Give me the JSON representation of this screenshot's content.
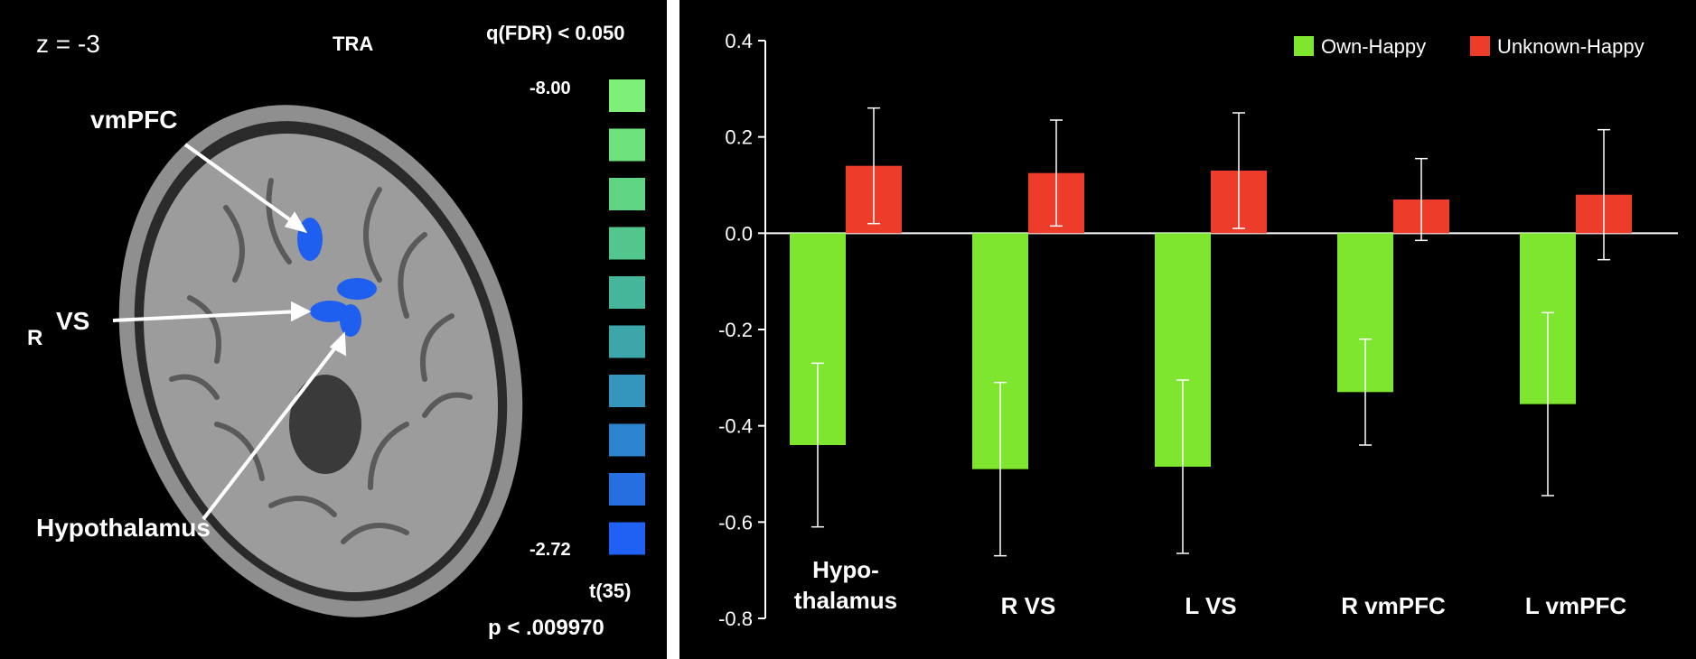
{
  "brain_panel": {
    "slice_label": "z = -3",
    "view_label": "TRA",
    "threshold_label": "q(FDR) < 0.050",
    "side_label": "R",
    "colorbar": {
      "max_label": "-8.00",
      "min_label": "-2.72",
      "stat_label": "t(35)",
      "p_label": "p < .009970",
      "colors": [
        "#7ef07a",
        "#6ee27c",
        "#5fd483",
        "#52c68c",
        "#46b69a",
        "#3ca6ab",
        "#3495bd",
        "#2c84cf",
        "#266fe0",
        "#2060f2"
      ]
    },
    "regions": [
      {
        "label": "vmPFC"
      },
      {
        "label": "VS"
      },
      {
        "label": "Hypothalamus"
      }
    ],
    "activation_color": "#1f5ff0"
  },
  "chart_data": {
    "type": "bar",
    "categories": [
      [
        "Hypo-",
        "thalamus"
      ],
      [
        "R VS"
      ],
      [
        "L VS"
      ],
      [
        "R vmPFC"
      ],
      [
        "L vmPFC"
      ]
    ],
    "series": [
      {
        "name": "Own-Happy",
        "color": "#7ee62e",
        "values": [
          -0.44,
          -0.49,
          -0.485,
          -0.33,
          -0.355
        ],
        "error": [
          0.17,
          0.18,
          0.18,
          0.11,
          0.19
        ]
      },
      {
        "name": "Unknown-Happy",
        "color": "#ee3c2b",
        "values": [
          0.14,
          0.125,
          0.13,
          0.07,
          0.08
        ],
        "error": [
          0.12,
          0.11,
          0.12,
          0.085,
          0.135
        ]
      }
    ],
    "ylim": [
      -0.8,
      0.4
    ],
    "yticks": [
      "0.4",
      "0.2",
      "0.0",
      "-0.2",
      "-0.4",
      "-0.6",
      "-0.8"
    ],
    "legend_position": "top-right",
    "grid": false
  }
}
